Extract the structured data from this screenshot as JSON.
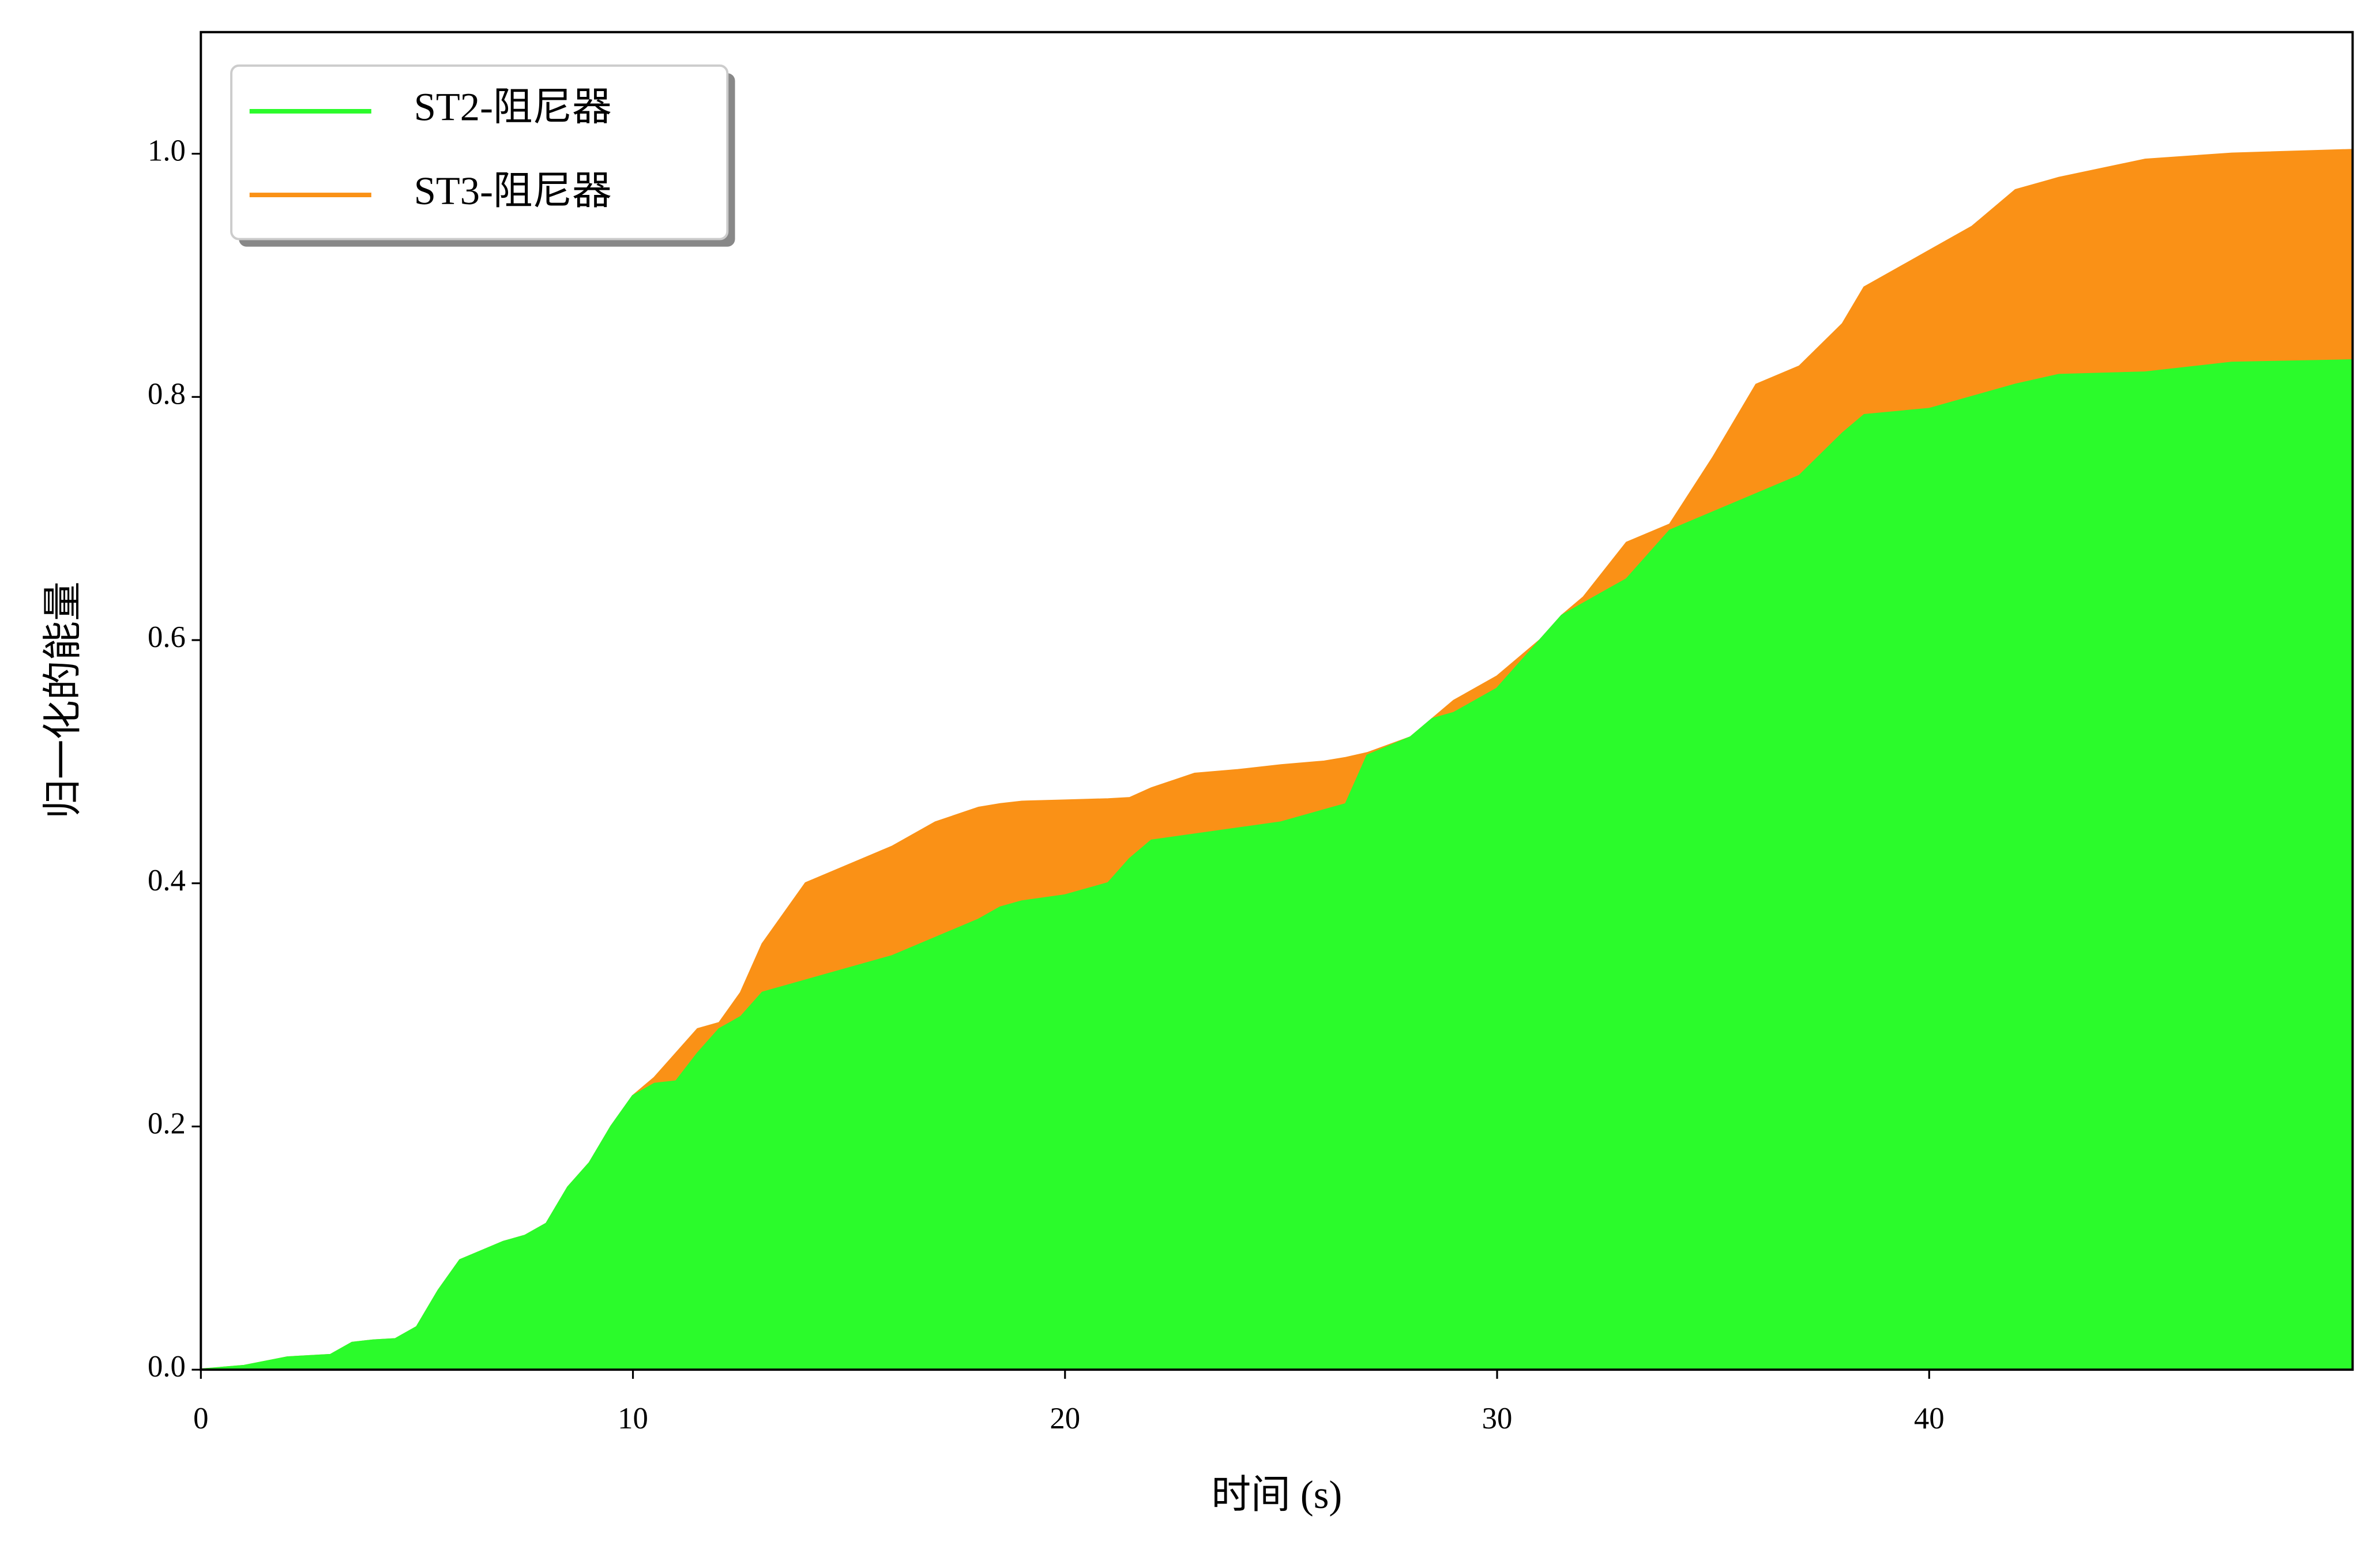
{
  "chart_data": {
    "type": "area",
    "x_label": "时间 (s)",
    "y_label": "归一化的能量",
    "x": [
      0,
      1,
      2,
      3,
      3.5,
      4,
      4.5,
      5,
      5.5,
      6,
      7,
      7.5,
      8,
      8.5,
      9,
      9.5,
      10,
      10.5,
      11,
      11.5,
      12,
      12.5,
      13,
      14,
      15,
      16,
      17,
      18,
      18.5,
      19,
      20,
      21,
      21.5,
      22,
      23,
      24,
      25,
      26,
      26.5,
      27,
      28,
      28.5,
      29,
      30,
      31,
      31.5,
      32,
      33,
      34,
      35,
      36,
      37,
      38,
      38.5,
      40,
      41,
      42,
      43,
      45,
      47,
      49.8
    ],
    "series": [
      {
        "name": "ST3-阻尼器",
        "color": "#fa9116",
        "values": [
          0,
          0.003,
          0.01,
          0.012,
          0.022,
          0.024,
          0.025,
          0.035,
          0.065,
          0.09,
          0.105,
          0.11,
          0.12,
          0.15,
          0.17,
          0.2,
          0.225,
          0.24,
          0.26,
          0.28,
          0.285,
          0.31,
          0.35,
          0.4,
          0.415,
          0.43,
          0.45,
          0.462,
          0.465,
          0.467,
          0.468,
          0.469,
          0.47,
          0.478,
          0.49,
          0.493,
          0.497,
          0.5,
          0.503,
          0.507,
          0.52,
          0.535,
          0.55,
          0.57,
          0.6,
          0.62,
          0.635,
          0.68,
          0.695,
          0.75,
          0.81,
          0.825,
          0.86,
          0.89,
          0.92,
          0.94,
          0.97,
          0.98,
          0.995,
          1.0,
          1.003
        ]
      },
      {
        "name": "ST2-阻尼器",
        "color": "#2bfb2b",
        "values": [
          0,
          0.003,
          0.01,
          0.012,
          0.022,
          0.024,
          0.025,
          0.035,
          0.065,
          0.09,
          0.105,
          0.11,
          0.12,
          0.15,
          0.17,
          0.2,
          0.225,
          0.235,
          0.237,
          0.26,
          0.28,
          0.29,
          0.31,
          0.32,
          0.33,
          0.34,
          0.355,
          0.37,
          0.38,
          0.385,
          0.39,
          0.4,
          0.42,
          0.435,
          0.44,
          0.445,
          0.45,
          0.46,
          0.465,
          0.505,
          0.52,
          0.535,
          0.54,
          0.56,
          0.6,
          0.62,
          0.63,
          0.65,
          0.69,
          0.705,
          0.72,
          0.735,
          0.77,
          0.785,
          0.79,
          0.8,
          0.81,
          0.818,
          0.82,
          0.828,
          0.83
        ]
      }
    ],
    "legend_order": [
      1,
      0
    ],
    "legend": "upper left",
    "xlim": [
      0,
      49.8
    ],
    "ylim": [
      0,
      1.1
    ],
    "xticks": [
      0,
      10,
      20,
      30,
      40
    ],
    "yticks": [
      {
        "value": 0,
        "label": "0.0"
      },
      0.2,
      0.4,
      0.6,
      0.8,
      {
        "value": 1,
        "label": "1.0"
      }
    ]
  }
}
